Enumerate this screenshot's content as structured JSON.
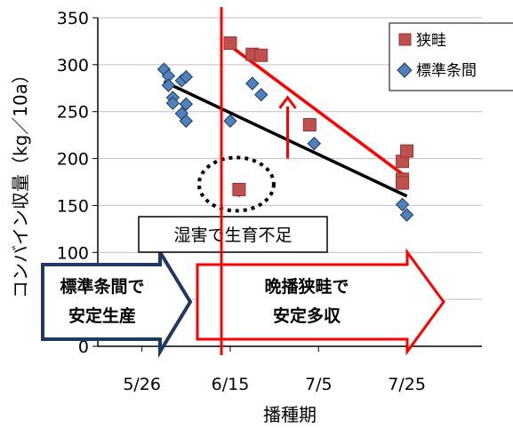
{
  "chart_data": {
    "type": "scatter",
    "xlabel": "播種期",
    "ylabel": "コンバイン収量（kg／10a）",
    "x_ticks": [
      "5/26",
      "6/15",
      "7/5",
      "7/25"
    ],
    "xlim": [
      "5/16",
      "8/11"
    ],
    "ylim": [
      0,
      350
    ],
    "y_ticks": [
      0,
      50,
      100,
      150,
      200,
      250,
      300,
      350
    ],
    "grid": "horizontal",
    "legend_position": "top-right",
    "series": [
      {
        "name": "狭畦",
        "marker": "square",
        "color": "#C0504D",
        "points": [
          {
            "x": "6/15",
            "y": 323
          },
          {
            "x": "6/17",
            "y": 167
          },
          {
            "x": "6/20",
            "y": 311
          },
          {
            "x": "6/22",
            "y": 310
          },
          {
            "x": "7/3",
            "y": 236
          },
          {
            "x": "7/24",
            "y": 197
          },
          {
            "x": "7/24",
            "y": 178
          },
          {
            "x": "7/24",
            "y": 174
          },
          {
            "x": "7/25",
            "y": 208
          }
        ],
        "trend": {
          "from": {
            "x": "6/15",
            "y": 320
          },
          "to": {
            "x": "7/25",
            "y": 180
          },
          "color": "#FF0000"
        }
      },
      {
        "name": "標準条間",
        "marker": "diamond",
        "color": "#4F81BD",
        "points": [
          {
            "x": "5/31",
            "y": 295
          },
          {
            "x": "6/1",
            "y": 288
          },
          {
            "x": "6/1",
            "y": 278
          },
          {
            "x": "6/2",
            "y": 265
          },
          {
            "x": "6/2",
            "y": 259
          },
          {
            "x": "6/4",
            "y": 283
          },
          {
            "x": "6/5",
            "y": 287
          },
          {
            "x": "6/4",
            "y": 248
          },
          {
            "x": "6/5",
            "y": 258
          },
          {
            "x": "6/5",
            "y": 240
          },
          {
            "x": "6/15",
            "y": 240
          },
          {
            "x": "6/17",
            "y": 166
          },
          {
            "x": "6/20",
            "y": 280
          },
          {
            "x": "6/22",
            "y": 268
          },
          {
            "x": "7/4",
            "y": 216
          },
          {
            "x": "7/24",
            "y": 151
          },
          {
            "x": "7/25",
            "y": 140
          }
        ],
        "trend": {
          "from": {
            "x": "5/31",
            "y": 282
          },
          "to": {
            "x": "7/25",
            "y": 160
          },
          "color": "#000000"
        }
      }
    ],
    "vertical_line": {
      "x": "6/13",
      "color": "#FF0000"
    },
    "annotations": {
      "wet_damage": "湿害で生育不足",
      "standard_arrow": [
        "標準条間で",
        "安定生産"
      ],
      "late_arrow": [
        "晩播狭畦で",
        "安定多収"
      ]
    },
    "up_arrow": {
      "x": "6/28",
      "y_from": 200,
      "y_to": 265,
      "color": "#FF0000"
    },
    "circle": {
      "x": "6/17",
      "y": 168,
      "color": "#000000"
    }
  }
}
